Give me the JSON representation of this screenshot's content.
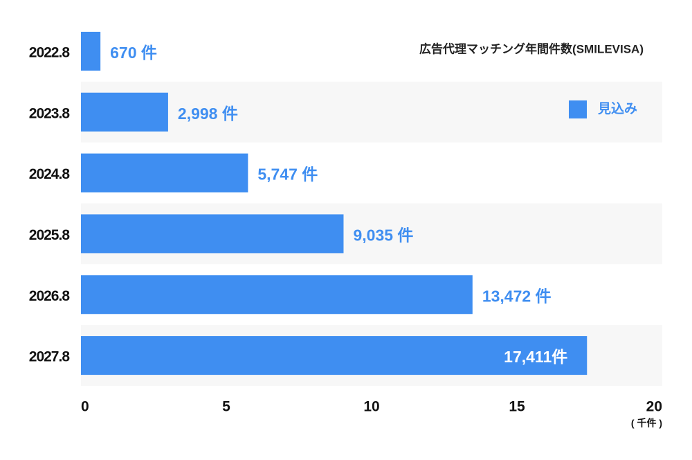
{
  "chart_data": {
    "type": "bar",
    "orientation": "horizontal",
    "title": "広告代理マッチング年間件数(SMILEVISA)",
    "categories": [
      "2022.8",
      "2023.8",
      "2024.8",
      "2025.8",
      "2026.8",
      "2027.8"
    ],
    "series": [
      {
        "name": "見込み",
        "color": "#3f8ef1",
        "values": [
          0.67,
          2.998,
          5.747,
          9.035,
          13.472,
          17.411
        ],
        "value_labels": [
          "670 件",
          "2,998 件",
          "5,747 件",
          "9,035 件",
          "13,472 件",
          "17,411件"
        ]
      }
    ],
    "xlim": [
      0,
      20
    ],
    "xticks": [
      0,
      5,
      10,
      15,
      20
    ],
    "xlabel": "( 千件 )",
    "legend": "top-right"
  }
}
